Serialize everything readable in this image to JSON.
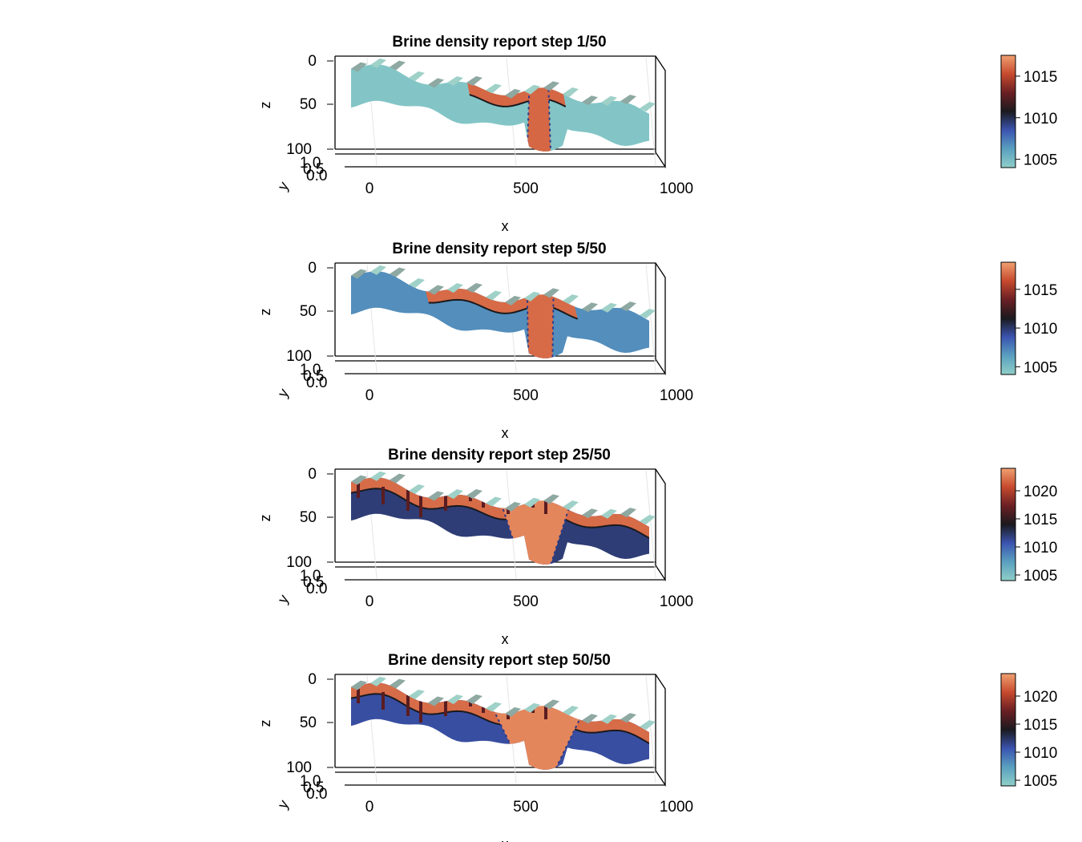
{
  "colormap": [
    "#8fcfc8",
    "#5aa0c0",
    "#3b54b0",
    "#1a1a1e",
    "#6a1f24",
    "#c74a2e",
    "#f0a070"
  ],
  "colors": {
    "surface_grey": "#8ea8a2",
    "surface_light": "#9fd1c8",
    "frame": "#000000",
    "grid": "#e4e4e4"
  },
  "chart_data": [
    {
      "type": "heatmap",
      "render": "3d-surface",
      "title": "Brine density report step 1/50",
      "xlabel": "x",
      "ylabel": "y",
      "zlabel": "z",
      "xticks": [
        "0",
        "500",
        "1000"
      ],
      "yticks": [
        "0.0",
        "0.5",
        "1.0"
      ],
      "zticks": [
        "0",
        "50",
        "100"
      ],
      "x_range": [
        0,
        1000
      ],
      "z_range": [
        0,
        100
      ],
      "colorbar": {
        "ticks": [
          1005,
          1010,
          1015
        ],
        "range": [
          1004,
          1017.5
        ]
      },
      "values": {
        "background": 1004.5,
        "plume_core": 1016,
        "plume_x_range": [
          600,
          660
        ],
        "spreading_layer": 1016,
        "spreading_x_range": [
          390,
          720
        ],
        "deep_blobs": false
      }
    },
    {
      "type": "heatmap",
      "render": "3d-surface",
      "title": "Brine density report step 5/50",
      "xlabel": "x",
      "ylabel": "y",
      "zlabel": "z",
      "xticks": [
        "0",
        "500",
        "1000"
      ],
      "yticks": [
        "0.0",
        "0.5",
        "1.0"
      ],
      "zticks": [
        "0",
        "50",
        "100"
      ],
      "x_range": [
        0,
        1000
      ],
      "z_range": [
        0,
        100
      ],
      "colorbar": {
        "ticks": [
          1005,
          1010,
          1015
        ],
        "range": [
          1004,
          1018.5
        ]
      },
      "values": {
        "background": 1007,
        "plume_core": 1017,
        "plume_x_range": [
          590,
          680
        ],
        "spreading_layer": 1017,
        "spreading_x_range": [
          250,
          760
        ],
        "deep_blobs": false
      }
    },
    {
      "type": "heatmap",
      "render": "3d-surface",
      "title": "Brine density report step 25/50",
      "xlabel": "x",
      "ylabel": "y",
      "zlabel": "z",
      "xticks": [
        "0",
        "500",
        "1000"
      ],
      "yticks": [
        "0.0",
        "0.5",
        "1.0"
      ],
      "zticks": [
        "0",
        "50",
        "100"
      ],
      "x_range": [
        0,
        1000
      ],
      "z_range": [
        0,
        100
      ],
      "colorbar": {
        "ticks": [
          1005,
          1010,
          1015,
          1020
        ],
        "range": [
          1004,
          1024
        ]
      },
      "values": {
        "background": 1012,
        "plume_core": 1023,
        "plume_x_range": [
          480,
          760
        ],
        "spreading_layer": 1022,
        "spreading_x_range": [
          0,
          1000
        ],
        "deep_blobs": true
      }
    },
    {
      "type": "heatmap",
      "render": "3d-surface",
      "title": "Brine density report step 50/50",
      "xlabel": "x",
      "ylabel": "y",
      "zlabel": "z",
      "xticks": [
        "0",
        "500",
        "1000"
      ],
      "yticks": [
        "0.0",
        "0.5",
        "1.0"
      ],
      "zticks": [
        "0",
        "50",
        "100"
      ],
      "x_range": [
        0,
        1000
      ],
      "z_range": [
        0,
        100
      ],
      "colorbar": {
        "ticks": [
          1005,
          1010,
          1015,
          1020
        ],
        "range": [
          1004,
          1024
        ]
      },
      "values": {
        "background": 1011,
        "plume_core": 1023,
        "plume_x_range": [
          440,
          820
        ],
        "spreading_layer": 1022,
        "spreading_x_range": [
          0,
          1000
        ],
        "deep_blobs": true
      }
    }
  ]
}
